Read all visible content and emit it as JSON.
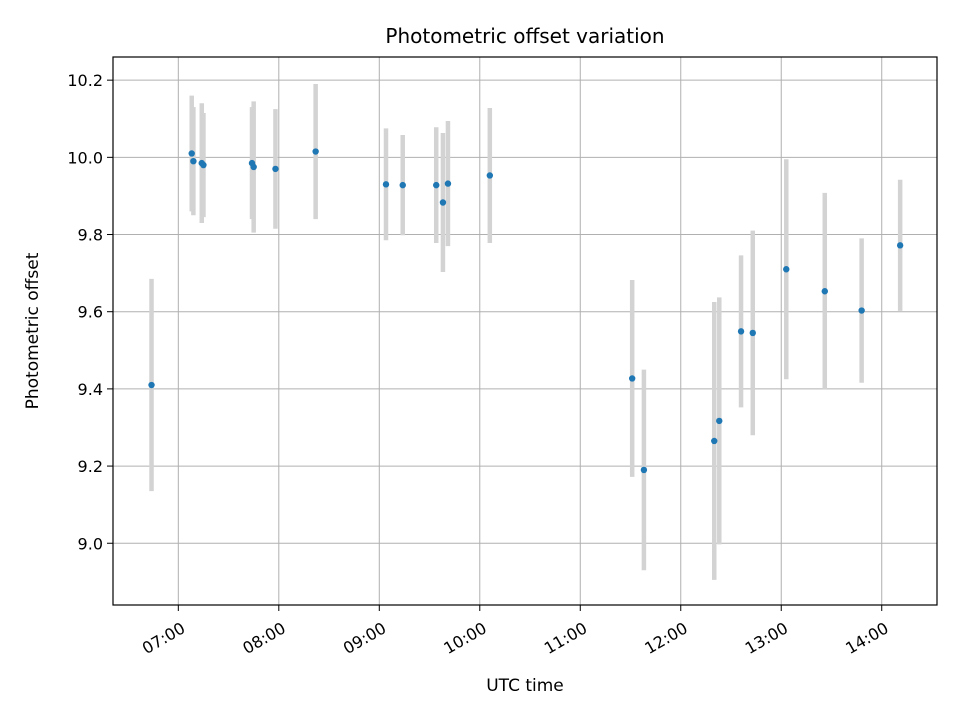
{
  "chart_data": {
    "type": "scatter",
    "title": "Photometric offset variation",
    "xlabel": "UTC time",
    "ylabel": "Photometric offset",
    "x_ticks": [
      "07:00",
      "08:00",
      "09:00",
      "10:00",
      "11:00",
      "12:00",
      "13:00",
      "14:00"
    ],
    "xlim": [
      "06:21",
      "14:33"
    ],
    "y_ticks": [
      "9.0",
      "9.2",
      "9.4",
      "9.6",
      "9.8",
      "10.0",
      "10.2"
    ],
    "ylim": [
      8.84,
      10.26
    ],
    "grid": true,
    "marker_color": "#1f77b4",
    "errorbar_color": "#d3d3d3",
    "points": [
      {
        "time": "06:44",
        "y": 9.41,
        "yerr": 0.275
      },
      {
        "time": "07:08",
        "y": 10.01,
        "yerr": 0.15
      },
      {
        "time": "07:09",
        "y": 9.99,
        "yerr": 0.14
      },
      {
        "time": "07:14",
        "y": 9.985,
        "yerr": 0.155
      },
      {
        "time": "07:15",
        "y": 9.98,
        "yerr": 0.135
      },
      {
        "time": "07:44",
        "y": 9.985,
        "yerr": 0.145
      },
      {
        "time": "07:45",
        "y": 9.975,
        "yerr": 0.17
      },
      {
        "time": "07:58",
        "y": 9.97,
        "yerr": 0.155
      },
      {
        "time": "08:22",
        "y": 10.015,
        "yerr": 0.175
      },
      {
        "time": "09:04",
        "y": 9.93,
        "yerr": 0.145
      },
      {
        "time": "09:14",
        "y": 9.928,
        "yerr": 0.13
      },
      {
        "time": "09:34",
        "y": 9.928,
        "yerr": 0.15
      },
      {
        "time": "09:38",
        "y": 9.883,
        "yerr": 0.18
      },
      {
        "time": "09:41",
        "y": 9.932,
        "yerr": 0.162
      },
      {
        "time": "10:06",
        "y": 9.953,
        "yerr": 0.175
      },
      {
        "time": "11:31",
        "y": 9.427,
        "yerr": 0.255
      },
      {
        "time": "11:38",
        "y": 9.19,
        "yerr": 0.26
      },
      {
        "time": "12:20",
        "y": 9.265,
        "yerr": 0.36
      },
      {
        "time": "12:23",
        "y": 9.317,
        "yerr": 0.32
      },
      {
        "time": "12:36",
        "y": 9.549,
        "yerr": 0.197
      },
      {
        "time": "12:43",
        "y": 9.545,
        "yerr": 0.265
      },
      {
        "time": "13:03",
        "y": 9.71,
        "yerr": 0.285
      },
      {
        "time": "13:26",
        "y": 9.653,
        "yerr": 0.255
      },
      {
        "time": "13:48",
        "y": 9.603,
        "yerr": 0.187
      },
      {
        "time": "14:11",
        "y": 9.772,
        "yerr": 0.17
      }
    ]
  }
}
